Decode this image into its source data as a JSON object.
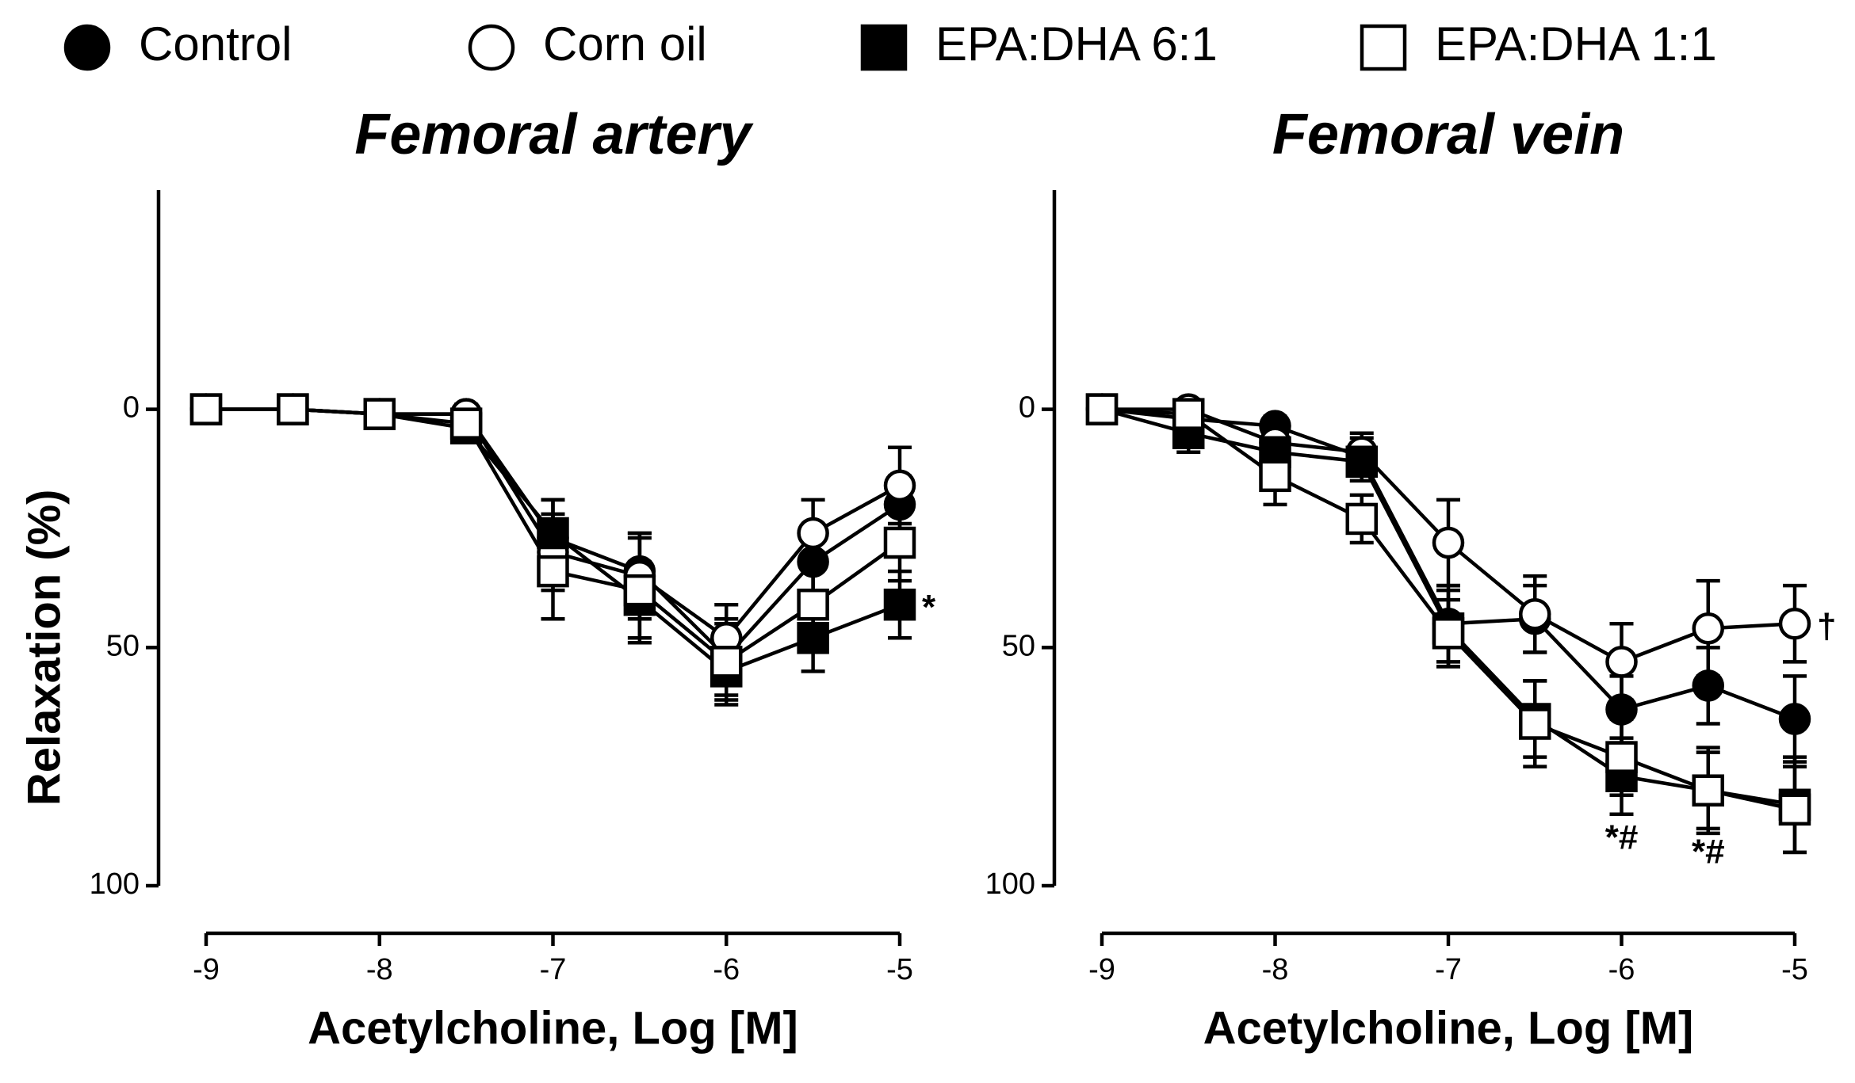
{
  "chart_data": [
    {
      "type": "line",
      "title": "Femoral artery",
      "x_label": "Acetylcholine, Log [M]",
      "y_label": "Relaxation (%)",
      "x": [
        -9,
        -8.5,
        -8,
        -7.5,
        -7,
        -6.5,
        -6,
        -5.5,
        -5
      ],
      "xlim": [
        -9,
        -5
      ],
      "xticks": [
        -9,
        -8,
        -7,
        -6,
        -5
      ],
      "ylim": [
        -46,
        100
      ],
      "yticks": [
        0,
        50,
        100
      ],
      "y_inverted": true,
      "series": [
        {
          "name": "Control",
          "color": "#000000",
          "marker": "circle",
          "filled": true,
          "values": [
            0,
            0,
            1,
            1,
            27,
            34,
            52,
            32,
            20
          ],
          "errors": [
            0,
            0,
            1,
            2,
            8,
            8,
            8,
            7,
            6
          ]
        },
        {
          "name": "Corn oil",
          "color": "#000000",
          "marker": "circle",
          "filled": false,
          "values": [
            0,
            0,
            1,
            1,
            30,
            35,
            48,
            26,
            16
          ],
          "errors": [
            0,
            0,
            1,
            2,
            8,
            9,
            7,
            7,
            8
          ]
        },
        {
          "name": "EPA:DHA 6:1",
          "color": "#000000",
          "marker": "square",
          "filled": true,
          "values": [
            0,
            0,
            1,
            4,
            26,
            40,
            55,
            48,
            41
          ],
          "errors": [
            0,
            0,
            1,
            2,
            7,
            8,
            7,
            7,
            7
          ]
        },
        {
          "name": "EPA:DHA 1:1",
          "color": "#000000",
          "marker": "square",
          "filled": false,
          "values": [
            0,
            0,
            1,
            3,
            34,
            38,
            53,
            41,
            28
          ],
          "errors": [
            0,
            0,
            1,
            2,
            10,
            11,
            8,
            8,
            8
          ]
        }
      ],
      "annotations": [
        {
          "text": "*",
          "x": -5,
          "y": 41,
          "position": "right"
        }
      ]
    },
    {
      "type": "line",
      "title": "Femoral vein",
      "x_label": "Acetylcholine, Log [M]",
      "x": [
        -9,
        -8.5,
        -8,
        -7.5,
        -7,
        -6.5,
        -6,
        -5.5,
        -5
      ],
      "xlim": [
        -9,
        -5
      ],
      "xticks": [
        -9,
        -8,
        -7,
        -6,
        -5
      ],
      "ylim": [
        -46,
        100
      ],
      "yticks": [
        0,
        50,
        100
      ],
      "y_inverted": true,
      "series": [
        {
          "color": "#000000",
          "marker": "circle",
          "filled": true,
          "values": [
            0,
            2,
            3.5,
            10,
            45,
            44,
            63,
            58,
            65
          ],
          "errors": [
            0,
            3,
            2,
            4,
            8,
            7,
            7,
            8,
            9
          ]
        },
        {
          "color": "#000000",
          "marker": "circle",
          "filled": false,
          "values": [
            0,
            0,
            7,
            9,
            28,
            43,
            53,
            46,
            45
          ],
          "errors": [
            0,
            2,
            3,
            4,
            9,
            8,
            8,
            10,
            8
          ]
        },
        {
          "color": "#000000",
          "marker": "square",
          "filled": true,
          "values": [
            0,
            5,
            9,
            11,
            46,
            65,
            77,
            80,
            83
          ],
          "errors": [
            0,
            4,
            3,
            4,
            8,
            8,
            8,
            9,
            10
          ]
        },
        {
          "color": "#000000",
          "marker": "square",
          "filled": false,
          "values": [
            0,
            1,
            14,
            23,
            47,
            66,
            73,
            80,
            84
          ],
          "errors": [
            0,
            3,
            6,
            5,
            7,
            9,
            8,
            8,
            9
          ]
        }
      ],
      "annotations": [
        {
          "text": "*#",
          "x": -6,
          "y": 77,
          "position": "below"
        },
        {
          "text": "*#",
          "x": -5.5,
          "y": 80,
          "position": "below"
        },
        {
          "text": "†",
          "x": -5,
          "y": 45,
          "position": "right"
        }
      ]
    }
  ]
}
